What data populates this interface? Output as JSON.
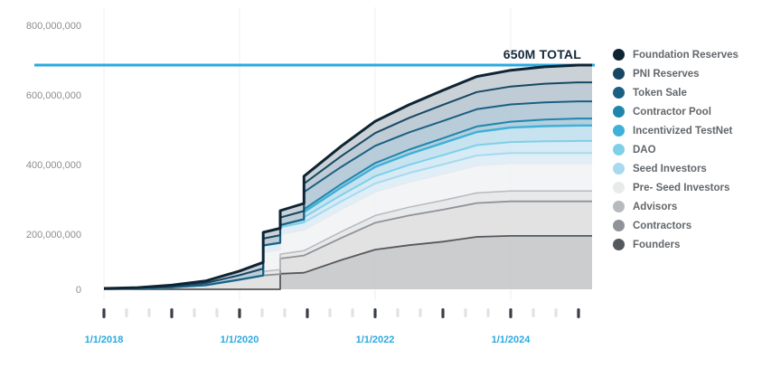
{
  "chart_data": {
    "type": "area",
    "subtype": "stacked-area-vesting-schedule",
    "total_label": "650M TOTAL",
    "total_supply": 650000000,
    "values_unit": "millions of tokens",
    "accent_color": "#29a9e0",
    "ylim": [
      0,
      800000000
    ],
    "x_years": [
      2018,
      2018.5,
      2019,
      2019.5,
      2020,
      2020.35,
      2020.35,
      2020.6,
      2020.6,
      2020.95,
      2020.95,
      2021.5,
      2022,
      2022.5,
      2023,
      2023.5,
      2024,
      2024.5,
      2025,
      2025.2
    ],
    "yticks": [
      {
        "value": 800000000,
        "label": "800,000,000"
      },
      {
        "value": 600000000,
        "label": "600,000,000"
      },
      {
        "value": 400000000,
        "label": "400,000,000"
      },
      {
        "value": 200000000,
        "label": "200,000,000"
      },
      {
        "value": 0,
        "label": "0"
      }
    ],
    "xticks": [
      {
        "year": 2018,
        "label": "1/1/2018"
      },
      {
        "year": 2020,
        "label": "1/1/2020"
      },
      {
        "year": 2022,
        "label": "1/1/2022"
      },
      {
        "year": 2024,
        "label": "1/1/2024"
      }
    ],
    "legend_position": "right",
    "grid": "vertical-only",
    "series": [
      {
        "name": "Foundation Reserves",
        "color": "#0e2433",
        "fill": "#c5ced5",
        "final_amount": 50000000,
        "values": [
          0.5,
          1,
          3,
          6,
          12,
          18,
          18,
          20,
          20,
          22,
          22,
          29,
          34,
          38,
          42,
          45,
          47,
          49,
          50,
          50
        ]
      },
      {
        "name": "PNI Reserves",
        "color": "#174863",
        "fill": "#bac8d2",
        "final_amount": 55000000,
        "values": [
          0.5,
          1,
          3,
          6,
          13,
          20,
          20,
          22,
          22,
          24,
          24,
          31,
          37,
          42,
          47,
          50,
          52,
          54,
          55,
          55
        ]
      },
      {
        "name": "Token Sale",
        "color": "#1b5f82",
        "fill": "#b2c8d6",
        "final_amount": 50000000,
        "values": [
          0,
          0,
          0,
          0,
          0,
          0,
          0,
          0,
          0,
          0,
          50,
          50,
          50,
          50,
          50,
          50,
          50,
          50,
          50,
          50
        ]
      },
      {
        "name": "Contractor Pool",
        "color": "#1f85ad",
        "fill": "#aecbdb",
        "final_amount": 20000000,
        "values": [
          0,
          0,
          0,
          0,
          0,
          0,
          0,
          0,
          0,
          0,
          8,
          10,
          11,
          13,
          14,
          16,
          17,
          19,
          20,
          20
        ]
      },
      {
        "name": "Incentivized TestNet",
        "color": "#3fb0d8",
        "fill": "#c2e1ee",
        "final_amount": 45000000,
        "values": [
          0,
          0,
          0,
          0,
          0,
          0,
          0,
          0,
          6,
          9,
          15,
          22,
          27,
          31,
          35,
          38,
          42,
          44,
          45,
          45
        ]
      },
      {
        "name": "DAO",
        "color": "#7ed0e9",
        "fill": "#d2e9f4",
        "final_amount": 35000000,
        "values": [
          0,
          0,
          0,
          0,
          0,
          0,
          0,
          0,
          0,
          0,
          15,
          18,
          21,
          24,
          27,
          30,
          32,
          34,
          35,
          35
        ]
      },
      {
        "name": "Seed Investors",
        "color": "#a9d9ec",
        "fill": "#dcedf6",
        "final_amount": 30000000,
        "values": [
          0,
          0,
          0,
          0,
          0,
          0,
          20,
          21,
          21,
          22,
          22,
          24,
          25,
          27,
          28,
          29.5,
          30,
          30,
          30,
          30
        ]
      },
      {
        "name": "Pre- Seed Investors",
        "color": "#e8eaec",
        "fill": "#f1f3f4",
        "final_amount": 80000000,
        "values": [
          0,
          0,
          0,
          0,
          0,
          0,
          55,
          57,
          57,
          60,
          60,
          64,
          68,
          72,
          76,
          79,
          80,
          80,
          80,
          80
        ]
      },
      {
        "name": "Advisors",
        "color": "#b7babd",
        "fill": "#e6e7e8",
        "final_amount": 30000000,
        "values": [
          0,
          0,
          0,
          0,
          0,
          0,
          12,
          13,
          13,
          14,
          14,
          18,
          21,
          24,
          27,
          29.5,
          30,
          30,
          30,
          30
        ]
      },
      {
        "name": "Contractors",
        "color": "#8f9296",
        "fill": "#dfe0e1",
        "final_amount": 100000000,
        "values": [
          1.5,
          3,
          6,
          12,
          28,
          40,
          40,
          44,
          44,
          50,
          50,
          64,
          78,
          86,
          93,
          98,
          100,
          100,
          100,
          100
        ]
      },
      {
        "name": "Founders",
        "color": "#55585c",
        "fill": "#c8c9ca",
        "final_amount": 155000000,
        "values": [
          0,
          0,
          0,
          0,
          0,
          0,
          0,
          0,
          45,
          48,
          48,
          85,
          115,
          128,
          138,
          152,
          155,
          155,
          155,
          155
        ]
      }
    ]
  }
}
